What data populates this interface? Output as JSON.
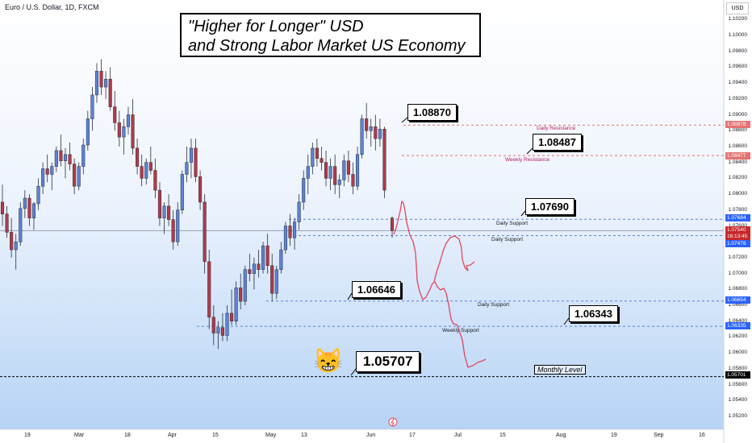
{
  "header": {
    "symbol_line": "Euro / U.S. Dollar, 1D, FXCM"
  },
  "title_box": {
    "line1": "\"Higher for Longer\" USD",
    "line2": "and Strong Labor Market US Economy"
  },
  "callouts": [
    "1.08870",
    "1.08487",
    "1.07690",
    "1.06646",
    "1.06343",
    "1.05707"
  ],
  "level_labels": [
    "Daily Resistance",
    "Weekly Resistance",
    "Daily Support",
    "Daily Support",
    "Daily Support",
    "Weekly Support"
  ],
  "monthly_label": "Monthly Level",
  "price_axis": {
    "currency": "USD",
    "ticks": [
      "1.10200",
      "1.10000",
      "1.09800",
      "1.09600",
      "1.09400",
      "1.09200",
      "1.09000",
      "1.08800",
      "1.08600",
      "1.08400",
      "1.08200",
      "1.08000",
      "1.07800",
      "1.07600",
      "1.07400",
      "1.07200",
      "1.07000",
      "1.06800",
      "1.06600",
      "1.06400",
      "1.06200",
      "1.06000",
      "1.05800",
      "1.05600",
      "1.05400",
      "1.05200"
    ],
    "tags": [
      {
        "text": "1.08878",
        "color": "#e57373"
      },
      {
        "text": "1.08477",
        "color": "#e57373"
      },
      {
        "text": "1.07684",
        "color": "#2962ff"
      },
      {
        "text": "1.07540",
        "color": "#c62828"
      },
      {
        "text": "16:13:45",
        "color": "#c62828"
      },
      {
        "text": "1.07478",
        "color": "#2962ff"
      },
      {
        "text": "1.06654",
        "color": "#2962ff"
      },
      {
        "text": "1.06335",
        "color": "#2962ff"
      },
      {
        "text": "1.05701",
        "color": "#000000"
      }
    ]
  },
  "time_axis": [
    "19",
    "Mar",
    "18",
    "Apr",
    "15",
    "May",
    "13",
    "Jun",
    "17",
    "Jul",
    "15",
    "Aug",
    "19",
    "Sep",
    "16"
  ],
  "colors": {
    "up": "#5b84d6",
    "down": "#b23a48",
    "projection": "#e0475b"
  },
  "chart_data": {
    "type": "candlestick",
    "ylim": [
      1.0515,
      1.103
    ],
    "levels": [
      1.0887,
      1.08487,
      1.07684,
      1.07478,
      1.06654,
      1.06335,
      1.05701
    ],
    "ohlc": [
      [
        1.079,
        1.0812,
        1.076,
        1.0775
      ],
      [
        1.0775,
        1.0785,
        1.0745,
        1.0752
      ],
      [
        1.0752,
        1.077,
        1.072,
        1.073
      ],
      [
        1.073,
        1.075,
        1.0705,
        1.074
      ],
      [
        1.074,
        1.079,
        1.0735,
        1.0782
      ],
      [
        1.0782,
        1.0805,
        1.077,
        1.0795
      ],
      [
        1.0795,
        1.08,
        1.076,
        1.077
      ],
      [
        1.077,
        1.079,
        1.0755,
        1.0788
      ],
      [
        1.0788,
        1.082,
        1.078,
        1.081
      ],
      [
        1.081,
        1.084,
        1.08,
        1.0832
      ],
      [
        1.0832,
        1.085,
        1.0815,
        1.0825
      ],
      [
        1.0825,
        1.084,
        1.0805,
        1.0835
      ],
      [
        1.0835,
        1.086,
        1.0828,
        1.0855
      ],
      [
        1.0855,
        1.0875,
        1.0835,
        1.0842
      ],
      [
        1.0842,
        1.0858,
        1.082,
        1.085
      ],
      [
        1.085,
        1.0865,
        1.083,
        1.0838
      ],
      [
        1.0838,
        1.0845,
        1.08,
        1.081
      ],
      [
        1.081,
        1.084,
        1.0805,
        1.0835
      ],
      [
        1.0835,
        1.087,
        1.0825,
        1.0862
      ],
      [
        1.0862,
        1.0905,
        1.0855,
        1.0895
      ],
      [
        1.0895,
        1.0935,
        1.088,
        1.0925
      ],
      [
        1.0925,
        1.0965,
        1.0915,
        1.0955
      ],
      [
        1.0955,
        1.097,
        1.0925,
        1.0935
      ],
      [
        1.0935,
        1.0955,
        1.092,
        1.0945
      ],
      [
        1.0945,
        1.096,
        1.0905,
        1.091
      ],
      [
        1.091,
        1.093,
        1.088,
        1.089
      ],
      [
        1.089,
        1.0905,
        1.086,
        1.0872
      ],
      [
        1.0872,
        1.0895,
        1.085,
        1.0885
      ],
      [
        1.0885,
        1.091,
        1.0875,
        1.09
      ],
      [
        1.09,
        1.092,
        1.085,
        1.0858
      ],
      [
        1.0858,
        1.087,
        1.0825,
        1.0835
      ],
      [
        1.0835,
        1.085,
        1.081,
        1.082
      ],
      [
        1.082,
        1.0845,
        1.0812,
        1.084
      ],
      [
        1.084,
        1.086,
        1.0825,
        1.083
      ],
      [
        1.083,
        1.0845,
        1.0795,
        1.0805
      ],
      [
        1.0805,
        1.0815,
        1.076,
        1.077
      ],
      [
        1.077,
        1.079,
        1.075,
        1.0785
      ],
      [
        1.0785,
        1.08,
        1.076,
        1.0768
      ],
      [
        1.0768,
        1.078,
        1.073,
        1.074
      ],
      [
        1.074,
        1.079,
        1.0735,
        1.078
      ],
      [
        1.078,
        1.083,
        1.0775,
        1.0825
      ],
      [
        1.0825,
        1.086,
        1.0815,
        1.084
      ],
      [
        1.084,
        1.087,
        1.082,
        1.0858
      ],
      [
        1.0858,
        1.087,
        1.0815,
        1.0822
      ],
      [
        1.0822,
        1.083,
        1.078,
        1.079
      ],
      [
        1.079,
        1.08,
        1.07,
        1.0715
      ],
      [
        1.0715,
        1.073,
        1.063,
        1.0645
      ],
      [
        1.0645,
        1.066,
        1.061,
        1.0625
      ],
      [
        1.0625,
        1.064,
        1.0605,
        1.0632
      ],
      [
        1.0632,
        1.065,
        1.0615,
        1.0622
      ],
      [
        1.0622,
        1.066,
        1.0615,
        1.065
      ],
      [
        1.065,
        1.068,
        1.0635,
        1.064
      ],
      [
        1.064,
        1.069,
        1.0635,
        1.0682
      ],
      [
        1.0682,
        1.07,
        1.0655,
        1.0665
      ],
      [
        1.0665,
        1.071,
        1.066,
        1.0705
      ],
      [
        1.0705,
        1.0725,
        1.069,
        1.07
      ],
      [
        1.07,
        1.072,
        1.068,
        1.0712
      ],
      [
        1.0712,
        1.073,
        1.0695,
        1.0705
      ],
      [
        1.0705,
        1.074,
        1.07,
        1.0735
      ],
      [
        1.0735,
        1.075,
        1.07,
        1.071
      ],
      [
        1.071,
        1.0725,
        1.0665,
        1.0675
      ],
      [
        1.0675,
        1.071,
        1.0668,
        1.0705
      ],
      [
        1.0705,
        1.074,
        1.07,
        1.073
      ],
      [
        1.073,
        1.0765,
        1.0725,
        1.076
      ],
      [
        1.076,
        1.0775,
        1.0735,
        1.0745
      ],
      [
        1.0745,
        1.077,
        1.073,
        1.0765
      ],
      [
        1.0765,
        1.08,
        1.0755,
        1.079
      ],
      [
        1.079,
        1.083,
        1.078,
        1.082
      ],
      [
        1.082,
        1.085,
        1.08,
        1.0835
      ],
      [
        1.0835,
        1.0865,
        1.0825,
        1.0858
      ],
      [
        1.0858,
        1.087,
        1.0835,
        1.0845
      ],
      [
        1.0845,
        1.086,
        1.083,
        1.084
      ],
      [
        1.084,
        1.0855,
        1.081,
        1.082
      ],
      [
        1.082,
        1.0845,
        1.0805,
        1.0835
      ],
      [
        1.0835,
        1.085,
        1.08,
        1.0812
      ],
      [
        1.0812,
        1.0825,
        1.0795,
        1.0818
      ],
      [
        1.0818,
        1.085,
        1.081,
        1.0842
      ],
      [
        1.0842,
        1.0855,
        1.0815,
        1.0825
      ],
      [
        1.0825,
        1.084,
        1.08,
        1.081
      ],
      [
        1.081,
        1.086,
        1.0805,
        1.085
      ],
      [
        1.085,
        1.09,
        1.0845,
        1.0895
      ],
      [
        1.0895,
        1.0915,
        1.087,
        1.088
      ],
      [
        1.088,
        1.0895,
        1.086,
        1.0885
      ],
      [
        1.0885,
        1.09,
        1.0855,
        1.087
      ],
      [
        1.087,
        1.0895,
        1.086,
        1.0882
      ],
      [
        1.0882,
        1.0885,
        1.0795,
        1.0805
      ],
      [
        1.077,
        1.0772,
        1.0745,
        1.0754
      ]
    ]
  }
}
